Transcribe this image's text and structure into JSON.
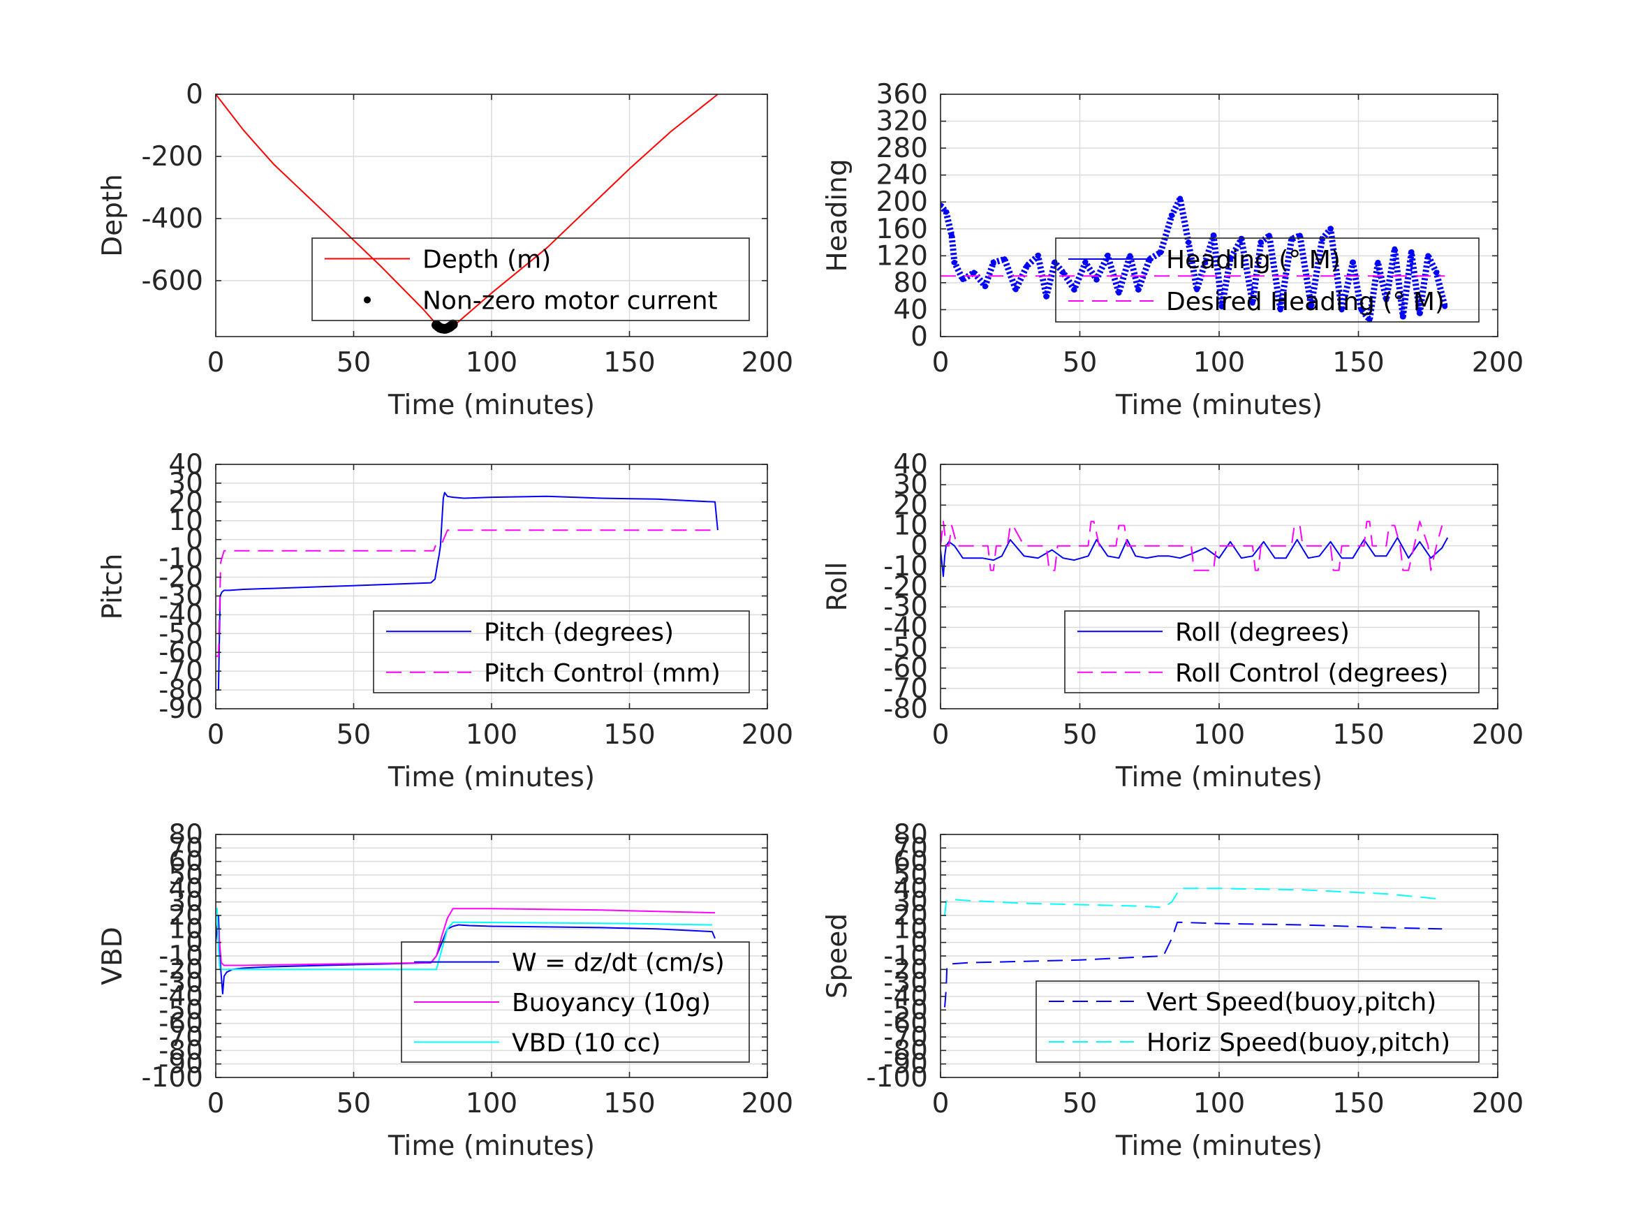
{
  "chart_data": [
    {
      "type": "line",
      "xlabel": "Time (minutes)",
      "ylabel": "Depth",
      "xlim": [
        0,
        200
      ],
      "ylim": [
        -780,
        0
      ],
      "xticks": [
        0,
        50,
        100,
        150,
        200
      ],
      "yticks": [
        0,
        -200,
        -400,
        -600
      ],
      "grid": true,
      "legend_position": "bottom-right",
      "series": [
        {
          "name": "Depth (m)",
          "color": "#ff0000",
          "style": "solid",
          "x": [
            0,
            10,
            21,
            40,
            60,
            75,
            81,
            84,
            87,
            100,
            120,
            150,
            165,
            182
          ],
          "y": [
            0,
            -115,
            -225,
            -385,
            -555,
            -690,
            -750,
            -755,
            -740,
            -640,
            -495,
            -240,
            -120,
            0
          ]
        },
        {
          "name": "Non-zero motor current",
          "color": "#000000",
          "style": "dots",
          "x": [
            80,
            80.7,
            81.3,
            82,
            82.7,
            83.3,
            84,
            84.7,
            85.3,
            86
          ],
          "y": [
            -743,
            -748,
            -752,
            -754,
            -755,
            -755,
            -753,
            -750,
            -746,
            -741
          ]
        }
      ]
    },
    {
      "type": "line",
      "xlabel": "Time (minutes)",
      "ylabel": "Heading",
      "xlim": [
        0,
        200
      ],
      "ylim": [
        0,
        360
      ],
      "xticks": [
        0,
        50,
        100,
        150,
        200
      ],
      "yticks": [
        0,
        40,
        80,
        120,
        160,
        200,
        240,
        280,
        320,
        360
      ],
      "grid": true,
      "legend_position": "center-right",
      "series": [
        {
          "name": "Heading (° M)",
          "color": "#0000ff",
          "style": "markers",
          "x": [
            0,
            2,
            4,
            5,
            8,
            12,
            16,
            19,
            23,
            27,
            31,
            35,
            38,
            41,
            44,
            48,
            52,
            56,
            60,
            64,
            68,
            71,
            75,
            79,
            83,
            86,
            89,
            92,
            95,
            98,
            101,
            104,
            108,
            112,
            115,
            118,
            122,
            126,
            129,
            133,
            137,
            140,
            144,
            148,
            151,
            154,
            157,
            160,
            163,
            166,
            169,
            172,
            175,
            178,
            181
          ],
          "y": [
            195,
            185,
            150,
            110,
            85,
            95,
            75,
            110,
            115,
            70,
            105,
            120,
            60,
            110,
            95,
            70,
            110,
            85,
            120,
            65,
            120,
            70,
            115,
            125,
            180,
            205,
            140,
            70,
            110,
            150,
            45,
            115,
            145,
            50,
            140,
            150,
            40,
            145,
            150,
            45,
            145,
            160,
            40,
            110,
            40,
            25,
            110,
            55,
            130,
            30,
            125,
            35,
            120,
            95,
            45
          ]
        },
        {
          "name": "Desired Heading (° M)",
          "color": "#ff00ff",
          "style": "dashed",
          "x": [
            0,
            50,
            100,
            150,
            181
          ],
          "y": [
            90,
            90,
            90,
            90,
            90
          ]
        }
      ]
    },
    {
      "type": "line",
      "xlabel": "Time (minutes)",
      "ylabel": "Pitch",
      "xlim": [
        0,
        200
      ],
      "ylim": [
        -90,
        40
      ],
      "xticks": [
        0,
        50,
        100,
        150,
        200
      ],
      "yticks": [
        -90,
        -80,
        -70,
        -60,
        -50,
        -40,
        -30,
        -20,
        -10,
        0,
        10,
        20,
        30,
        40
      ],
      "grid": true,
      "legend_position": "bottom-right",
      "series": [
        {
          "name": "Pitch (degrees)",
          "color": "#0000ff",
          "style": "solid",
          "x": [
            0,
            1,
            1.6,
            2.2,
            3,
            5,
            10,
            20,
            40,
            60,
            78,
            79.5,
            80.5,
            81,
            81.5,
            82,
            82.5,
            83,
            84,
            86,
            90,
            100,
            120,
            140,
            160,
            181,
            182
          ],
          "y": [
            -80,
            -80,
            -30,
            -28,
            -27,
            -27,
            -26.5,
            -26,
            -25,
            -24,
            -23,
            -21,
            -12,
            -8,
            -3,
            10,
            22,
            25,
            23,
            22.5,
            22,
            22.5,
            23,
            22,
            21.5,
            20,
            5
          ]
        },
        {
          "name": "Pitch Control (mm)",
          "color": "#ff00ff",
          "style": "dashed",
          "x": [
            0,
            1,
            1.8,
            3,
            20,
            60,
            79,
            80,
            82,
            84,
            100,
            140,
            180,
            182
          ],
          "y": [
            -62,
            -62,
            -12,
            -6,
            -6,
            -6,
            -6,
            -2,
            -2,
            5,
            5,
            5,
            5,
            5
          ]
        }
      ]
    },
    {
      "type": "line",
      "xlabel": "Time (minutes)",
      "ylabel": "Roll",
      "xlim": [
        0,
        200
      ],
      "ylim": [
        -80,
        40
      ],
      "xticks": [
        0,
        50,
        100,
        150,
        200
      ],
      "yticks": [
        -80,
        -70,
        -60,
        -50,
        -40,
        -30,
        -20,
        -10,
        0,
        10,
        20,
        30,
        40
      ],
      "grid": true,
      "legend_position": "bottom-right",
      "series": [
        {
          "name": "Roll (degrees)",
          "color": "#0000ff",
          "style": "solid",
          "x": [
            0,
            1,
            1.5,
            2,
            3,
            5,
            8,
            15,
            19,
            22,
            25,
            30,
            35,
            40,
            44,
            48,
            53,
            56,
            60,
            64,
            67,
            70,
            74,
            78,
            82,
            86,
            90,
            95,
            100,
            104,
            108,
            112,
            116,
            120,
            124,
            128,
            132,
            136,
            140,
            144,
            148,
            152,
            156,
            160,
            164,
            168,
            172,
            176,
            180,
            182
          ],
          "y": [
            -2,
            -15,
            -5,
            0,
            2,
            0,
            -6,
            -6,
            -7,
            -5,
            3,
            -5,
            -6,
            -2,
            -6,
            -7,
            -5,
            3,
            -5,
            -6,
            3,
            -5,
            -6,
            -5,
            -5,
            -6,
            -4,
            -1,
            -6,
            2,
            -6,
            -5,
            2,
            -6,
            -6,
            3,
            -6,
            -5,
            2,
            -6,
            -6,
            3,
            -5,
            -5,
            4,
            -6,
            2,
            -6,
            -1,
            4
          ]
        },
        {
          "name": "Roll Control (degrees)",
          "color": "#ff00ff",
          "style": "dashed",
          "x": [
            0,
            1,
            2,
            3,
            4,
            6,
            17,
            18,
            19,
            20,
            24,
            25,
            26,
            30,
            38,
            39,
            41,
            42,
            50,
            53,
            54,
            55,
            57,
            63,
            64,
            66,
            67,
            78,
            79,
            90,
            91,
            98,
            99,
            100,
            101,
            112,
            113,
            114,
            115,
            117,
            126,
            127,
            129,
            130,
            140,
            141,
            143,
            144,
            150,
            152,
            153,
            154,
            155,
            160,
            161,
            163,
            165,
            166,
            168,
            170,
            172,
            175,
            176,
            178,
            180
          ],
          "y": [
            0,
            12,
            0,
            0,
            10,
            0,
            0,
            -12,
            -12,
            0,
            0,
            10,
            10,
            0,
            0,
            -12,
            -12,
            0,
            0,
            0,
            12,
            12,
            0,
            0,
            10,
            10,
            0,
            0,
            0,
            0,
            -12,
            -12,
            0,
            0,
            0,
            0,
            -12,
            -12,
            0,
            0,
            0,
            10,
            10,
            0,
            0,
            -12,
            -12,
            0,
            0,
            0,
            12,
            12,
            0,
            0,
            10,
            10,
            0,
            -12,
            -12,
            0,
            12,
            0,
            -12,
            0,
            10
          ]
        }
      ]
    },
    {
      "type": "line",
      "xlabel": "Time (minutes)",
      "ylabel": "VBD",
      "xlim": [
        0,
        200
      ],
      "ylim": [
        -100,
        80
      ],
      "xticks": [
        0,
        50,
        100,
        150,
        200
      ],
      "yticks": [
        -100,
        -90,
        -80,
        -70,
        -60,
        -50,
        -40,
        -30,
        -20,
        -10,
        0,
        10,
        20,
        30,
        40,
        50,
        60,
        70,
        80
      ],
      "grid": true,
      "legend_position": "bottom-right",
      "series": [
        {
          "name": "W = dz/dt (cm/s)",
          "color": "#0000ff",
          "style": "solid",
          "x": [
            0,
            1,
            1.5,
            2,
            2.5,
            3,
            4,
            6,
            10,
            20,
            40,
            60,
            78,
            80,
            82,
            84,
            86,
            88,
            92,
            100,
            120,
            140,
            160,
            180,
            181
          ],
          "y": [
            0,
            20,
            -10,
            -25,
            -38,
            -25,
            -22,
            -20,
            -19,
            -18,
            -17,
            -16,
            -15,
            -10,
            0,
            10,
            12,
            13,
            12.5,
            12,
            11.5,
            11,
            10,
            8,
            3
          ]
        },
        {
          "name": "Buoyancy (10g)",
          "color": "#ff00ff",
          "style": "solid",
          "x": [
            0,
            1,
            2,
            3,
            10,
            40,
            78,
            80,
            82,
            84,
            86,
            100,
            140,
            180,
            181
          ],
          "y": [
            10,
            10,
            -15,
            -17,
            -17,
            -16,
            -15,
            -10,
            5,
            18,
            25,
            25,
            24,
            22,
            22
          ]
        },
        {
          "name": "VBD (10 cc)",
          "color": "#00ffff",
          "style": "solid",
          "x": [
            0,
            0.5,
            1,
            1.5,
            2,
            4,
            10,
            40,
            70,
            80,
            82,
            84,
            86,
            90,
            120,
            150,
            180
          ],
          "y": [
            25,
            25,
            -5,
            -20,
            -20,
            -20,
            -20,
            -20,
            -20,
            -20,
            -5,
            10,
            15,
            15,
            14.5,
            14,
            13
          ]
        }
      ]
    },
    {
      "type": "line",
      "xlabel": "Time (minutes)",
      "ylabel": "Speed",
      "xlim": [
        0,
        200
      ],
      "ylim": [
        -100,
        80
      ],
      "xticks": [
        0,
        50,
        100,
        150,
        200
      ],
      "yticks": [
        -100,
        -90,
        -80,
        -70,
        -60,
        -50,
        -40,
        -30,
        -20,
        -10,
        0,
        10,
        20,
        30,
        40,
        50,
        60,
        70,
        80
      ],
      "grid": true,
      "legend_position": "bottom-right",
      "series": [
        {
          "name": "Vert Speed(buoy,pitch)",
          "color": "#0000ff",
          "style": "dashed",
          "x": [
            1.5,
            2,
            2.3,
            3,
            10,
            30,
            50,
            70,
            80,
            83,
            85,
            100,
            130,
            160,
            180
          ],
          "y": [
            -48,
            -35,
            -18,
            -16,
            -15,
            -14,
            -13,
            -11,
            -10,
            3,
            15,
            14,
            13,
            11,
            10
          ]
        },
        {
          "name": "Horiz Speed(buoy,pitch)",
          "color": "#00ffff",
          "style": "dashed",
          "x": [
            1.5,
            2,
            3,
            10,
            30,
            50,
            70,
            80,
            83,
            86,
            100,
            130,
            160,
            180
          ],
          "y": [
            20,
            30,
            32,
            31,
            29,
            28,
            27,
            26,
            30,
            40,
            40,
            39,
            36,
            32
          ]
        }
      ]
    }
  ]
}
